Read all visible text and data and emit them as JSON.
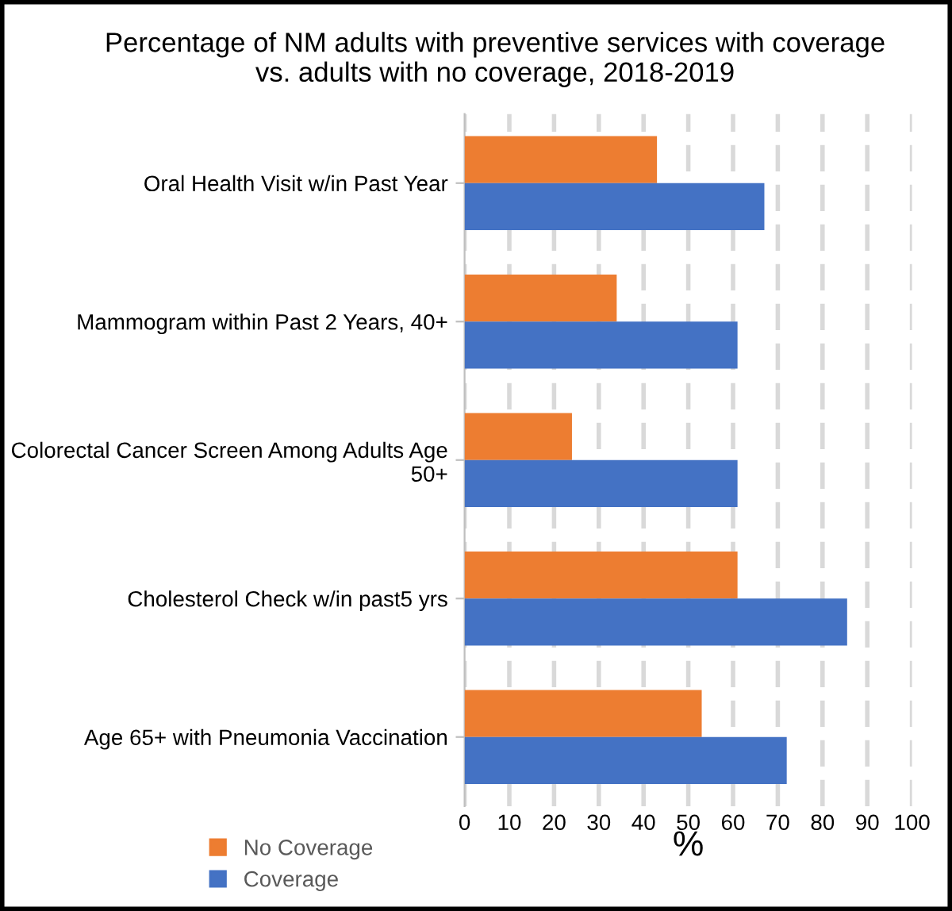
{
  "chart_data": {
    "type": "bar",
    "orientation": "horizontal",
    "title": "Percentage of NM adults with preventive services with coverage\nvs. adults with no coverage, 2018-2019",
    "xlabel": "%",
    "categories": [
      "Oral Health Visit w/in Past Year",
      "Mammogram within Past 2 Years, 40+",
      "Colorectal Cancer Screen Among Adults Age\n50+",
      "Cholesterol Check w/in past5 yrs",
      "Age 65+ with Pneumonia Vaccination"
    ],
    "series": [
      {
        "name": "No Coverage",
        "color": "#ed7d31",
        "values": [
          43,
          34,
          24,
          61,
          53
        ]
      },
      {
        "name": "Coverage",
        "color": "#4472c4",
        "values": [
          67,
          61,
          61,
          85.5,
          72
        ]
      }
    ],
    "xlim": [
      0,
      100
    ],
    "xticks": [
      0,
      10,
      20,
      30,
      40,
      50,
      60,
      70,
      80,
      90,
      100
    ],
    "grid": "x",
    "legend": "bottom left"
  }
}
